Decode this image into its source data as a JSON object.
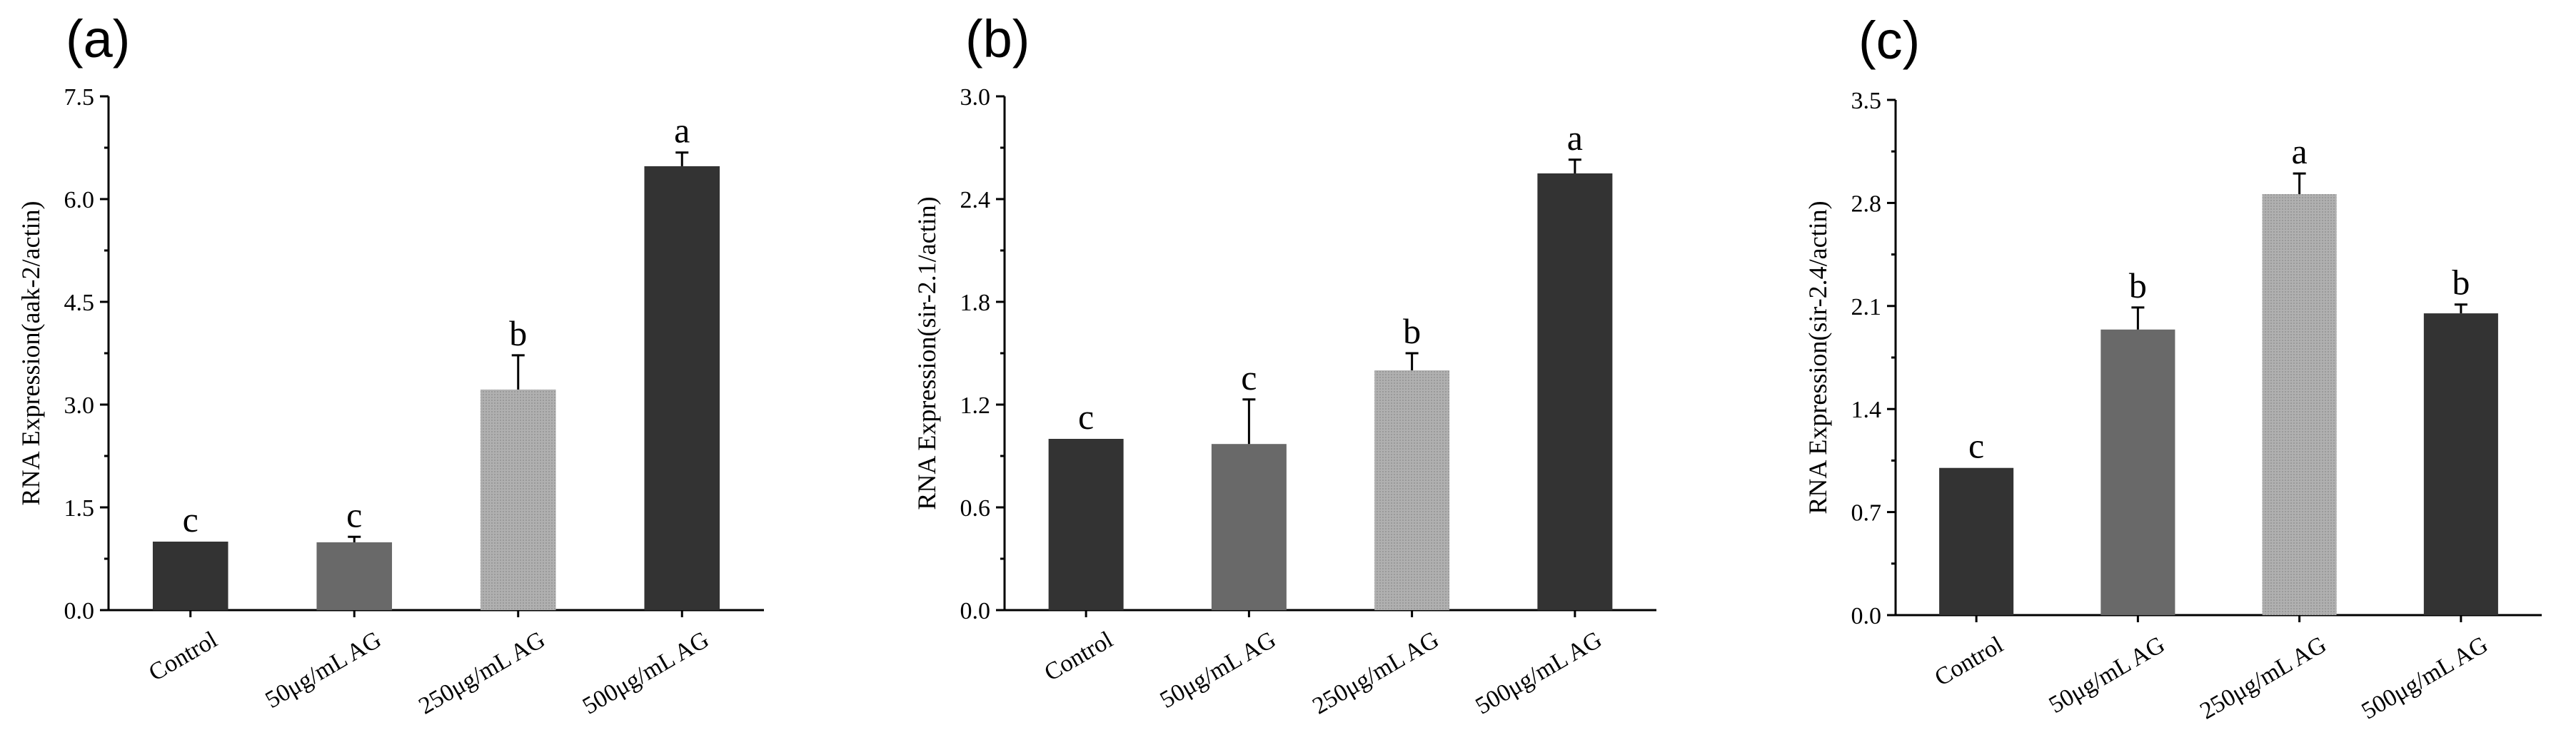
{
  "chart_data": [
    {
      "type": "bar",
      "panel": "(a)",
      "ylabel": "RNA Expression(aak-2/actin)",
      "ylim": [
        0,
        7.5
      ],
      "yticks": [
        "0.0",
        "1.5",
        "3.0",
        "4.5",
        "6.0",
        "7.5"
      ],
      "categories": [
        "Control",
        "50μg/mL AG",
        "250μg/mL AG",
        "500μg/mL AG"
      ],
      "values": [
        1.0,
        0.99,
        3.22,
        6.48
      ],
      "errors": [
        0.0,
        0.08,
        0.5,
        0.2
      ],
      "significance": [
        "c",
        "c",
        "b",
        "a"
      ]
    },
    {
      "type": "bar",
      "panel": "(b)",
      "ylabel": "RNA Expression(sir-2.1/actin)",
      "ylim": [
        0,
        3.0
      ],
      "yticks": [
        "0.0",
        "0.6",
        "1.2",
        "1.8",
        "2.4",
        "3.0"
      ],
      "categories": [
        "Control",
        "50μg/mL AG",
        "250μg/mL AG",
        "500μg/mL AG"
      ],
      "values": [
        1.0,
        0.97,
        1.4,
        2.55
      ],
      "errors": [
        0.0,
        0.26,
        0.1,
        0.08
      ],
      "significance": [
        "c",
        "c",
        "b",
        "a"
      ]
    },
    {
      "type": "bar",
      "panel": "(c)",
      "ylabel": "RNA Expression(sir-2.4/actin)",
      "ylim": [
        0,
        3.5
      ],
      "yticks": [
        "0.0",
        "0.7",
        "1.4",
        "2.1",
        "2.8",
        "3.5"
      ],
      "categories": [
        "Control",
        "50μg/mL AG",
        "250μg/mL AG",
        "500μg/mL AG"
      ],
      "values": [
        1.0,
        1.94,
        2.86,
        2.05
      ],
      "errors": [
        0.0,
        0.15,
        0.14,
        0.06
      ],
      "significance": [
        "c",
        "b",
        "a",
        "b"
      ]
    }
  ],
  "colors": {
    "bars": [
      "#333333",
      "#6a6a6a",
      "#a8a8a8",
      "#333333"
    ],
    "bars_panel_c": [
      "#333333",
      "#6a6a6a",
      "#a8a8a8",
      "#333333"
    ]
  }
}
